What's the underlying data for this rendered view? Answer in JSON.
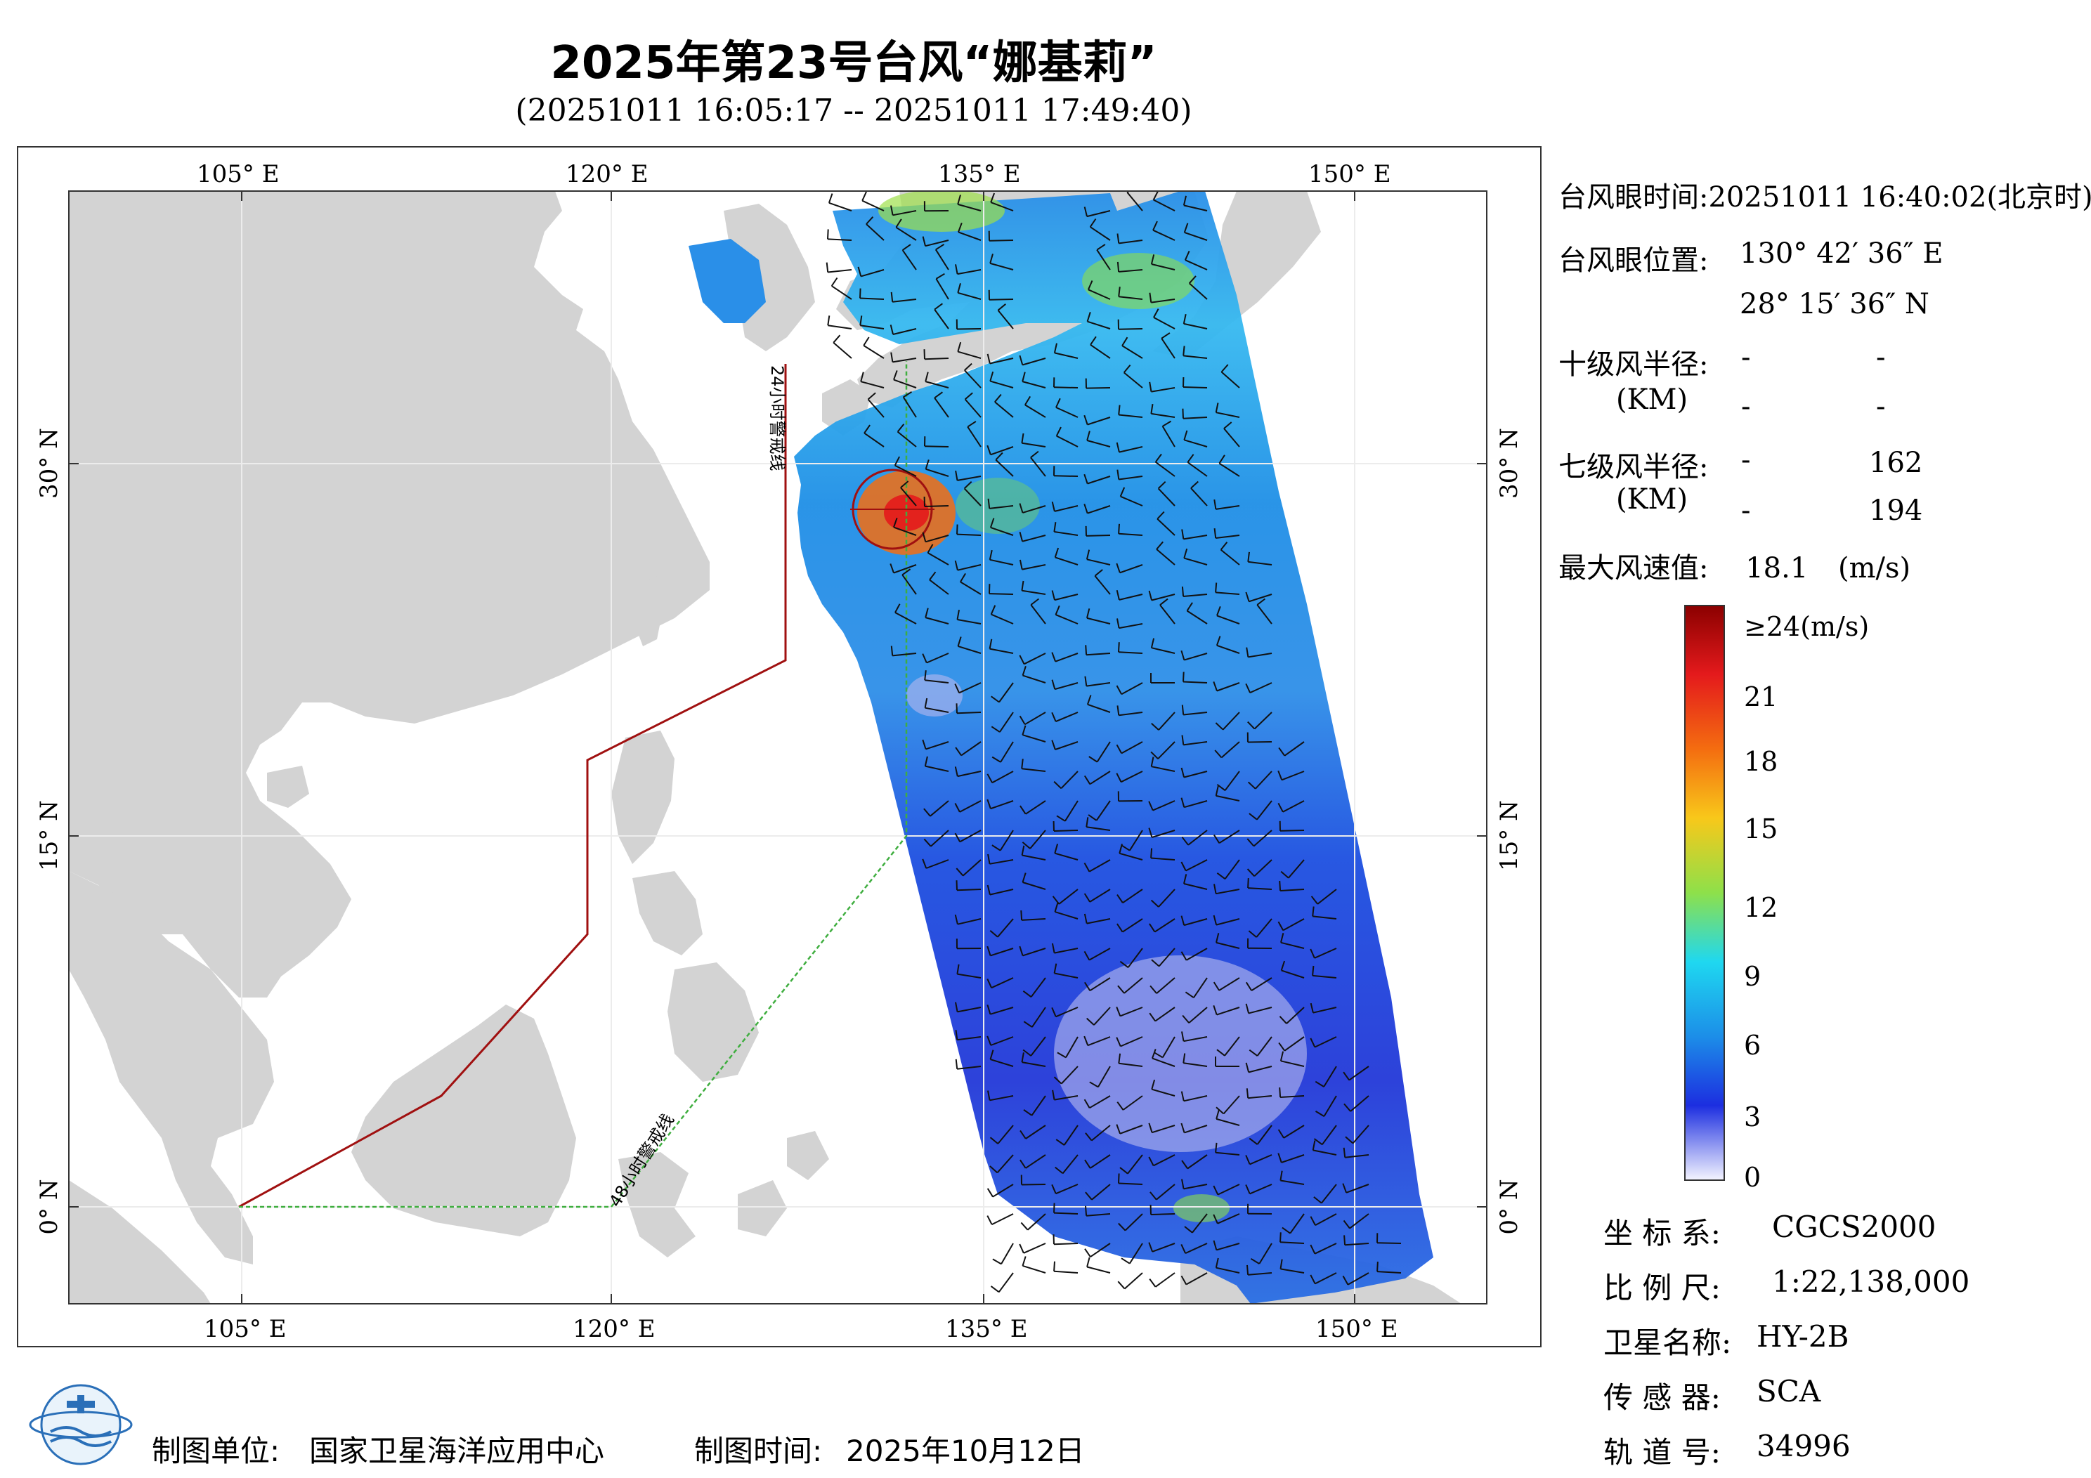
{
  "title": "2025年第23号台风“娜基莉”",
  "subtitle": "(20251011 16:05:17 -- 20251011 17:49:40)",
  "map": {
    "lon_ticks": [
      "105° E",
      "120° E",
      "135° E",
      "150° E"
    ],
    "lat_ticks": [
      "30° N",
      "15° N",
      "0° N"
    ],
    "warning_line_24h": "24小时警戒线",
    "warning_line_48h": "48小时警戒线",
    "colors": {
      "land": "#d3d3d3",
      "sea": "#ffffff",
      "line_24h": "#a01010",
      "line_48h": "#3fae3f"
    }
  },
  "info": {
    "eye_time_label": "台风眼时间:",
    "eye_time_value": "20251011 16:40:02(北京时)",
    "eye_pos_label": "台风眼位置:",
    "eye_lon": "130° 42′ 36″ E",
    "eye_lat": "28° 15′ 36″ N",
    "r10_label": "十级风半径:",
    "r10_unit": "(KM)",
    "r10_values": [
      "-",
      "-",
      "-",
      "-"
    ],
    "r7_label": "七级风半径:",
    "r7_unit": "(KM)",
    "r7_values": [
      "-",
      "162",
      "-",
      "194"
    ],
    "max_wind_label": "最大风速值:",
    "max_wind_value": "18.1",
    "max_wind_unit": "(m/s)"
  },
  "colorbar": {
    "labels": [
      "≥24(m/s)",
      "21",
      "18",
      "15",
      "12",
      "9",
      "6",
      "3",
      "0"
    ]
  },
  "meta": {
    "crs_label": "坐 标 系:",
    "crs_value": "CGCS2000",
    "scale_label": "比 例 尺:",
    "scale_value": "1:22,138,000",
    "satellite_label": "卫星名称:",
    "satellite_value": "HY-2B",
    "sensor_label": "传 感 器:",
    "sensor_value": "SCA",
    "orbit_label": "轨 道 号:",
    "orbit_value": "34996"
  },
  "footer": {
    "unit_label": "制图单位:",
    "unit_value": "国家卫星海洋应用中心",
    "time_label": "制图时间:",
    "time_value": "2025年10月12日"
  }
}
